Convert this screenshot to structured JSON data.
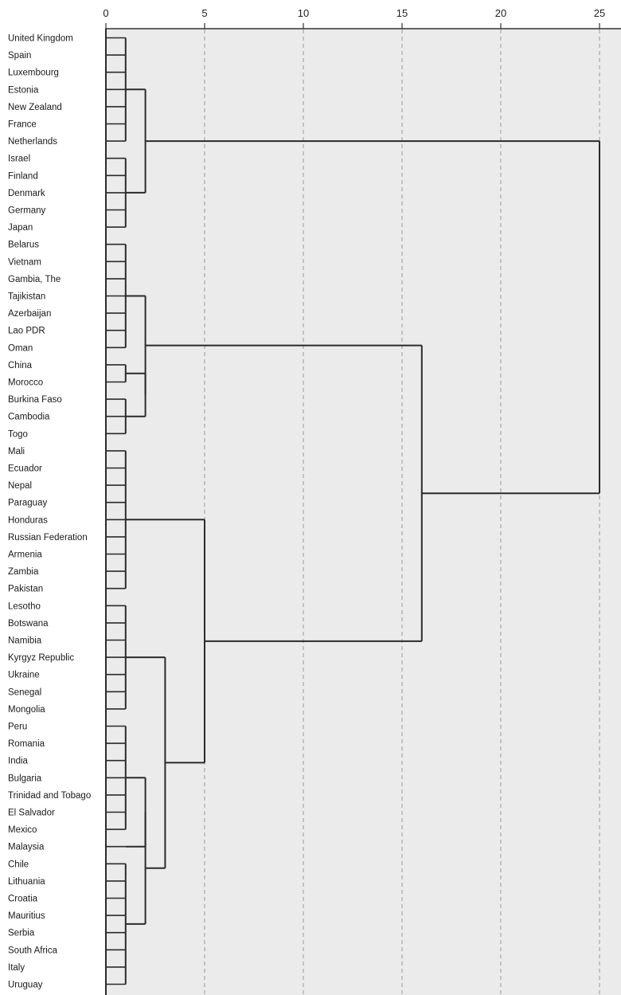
{
  "chart_data": {
    "type": "dendrogram",
    "xlim": [
      0,
      25
    ],
    "x_ticks": [
      0,
      5,
      10,
      15,
      20,
      25
    ],
    "grid": "vertical dashed",
    "leaves": [
      "United Kingdom",
      "Spain",
      "Luxembourg",
      "Estonia",
      "New Zealand",
      "France",
      "Netherlands",
      "Israel",
      "Finland",
      "Denmark",
      "Germany",
      "Japan",
      "Belarus",
      "Vietnam",
      "Gambia, The",
      "Tajikistan",
      "Azerbaijan",
      "Lao PDR",
      "Oman",
      "China",
      "Morocco",
      "Burkina Faso",
      "Cambodia",
      "Togo",
      "Mali",
      "Ecuador",
      "Nepal",
      "Paraguay",
      "Honduras",
      "Russian Federation",
      "Armenia",
      "Zambia",
      "Pakistan",
      "Lesotho",
      "Botswana",
      "Namibia",
      "Kyrgyz Republic",
      "Ukraine",
      "Senegal",
      "Mongolia",
      "Peru",
      "Romania",
      "India",
      "Bulgaria",
      "Trinidad and Tobago",
      "El Salvador",
      "Mexico",
      "Malaysia",
      "Chile",
      "Lithuania",
      "Croatia",
      "Mauritius",
      "Serbia",
      "South Africa",
      "Italy",
      "Uruguay"
    ],
    "merges": [
      {
        "id": "A1",
        "range": [
          0,
          6
        ],
        "height": 1
      },
      {
        "id": "A2",
        "range": [
          7,
          11
        ],
        "height": 1
      },
      {
        "id": "A",
        "children": [
          "A1",
          "A2"
        ],
        "height": 2
      },
      {
        "id": "B1",
        "range": [
          12,
          18
        ],
        "height": 1
      },
      {
        "id": "B2",
        "range": [
          19,
          20
        ],
        "height": 1
      },
      {
        "id": "B3",
        "range": [
          21,
          23
        ],
        "height": 1
      },
      {
        "id": "B23",
        "children": [
          "B2",
          "B3"
        ],
        "height": 2
      },
      {
        "id": "B",
        "children": [
          "B1",
          "B23"
        ],
        "height": 2
      },
      {
        "id": "C1",
        "range": [
          24,
          32
        ],
        "height": 1
      },
      {
        "id": "C2",
        "range": [
          33,
          39
        ],
        "height": 1
      },
      {
        "id": "C3",
        "range": [
          40,
          46
        ],
        "height": 1
      },
      {
        "id": "C4",
        "range": [
          47,
          47
        ],
        "height": 1
      },
      {
        "id": "C34",
        "children": [
          "C3",
          "C4"
        ],
        "height": 2
      },
      {
        "id": "C5",
        "range": [
          48,
          55
        ],
        "height": 1
      },
      {
        "id": "C345",
        "children": [
          "C34",
          "C5"
        ],
        "height": 2
      },
      {
        "id": "C2345",
        "children": [
          "C2",
          "C345"
        ],
        "height": 3
      },
      {
        "id": "C",
        "children": [
          "C1",
          "C2345"
        ],
        "height": 5
      },
      {
        "id": "BC",
        "children": [
          "B",
          "C"
        ],
        "height": 16
      },
      {
        "id": "ROOT",
        "children": [
          "A",
          "BC"
        ],
        "height": 25
      }
    ]
  }
}
